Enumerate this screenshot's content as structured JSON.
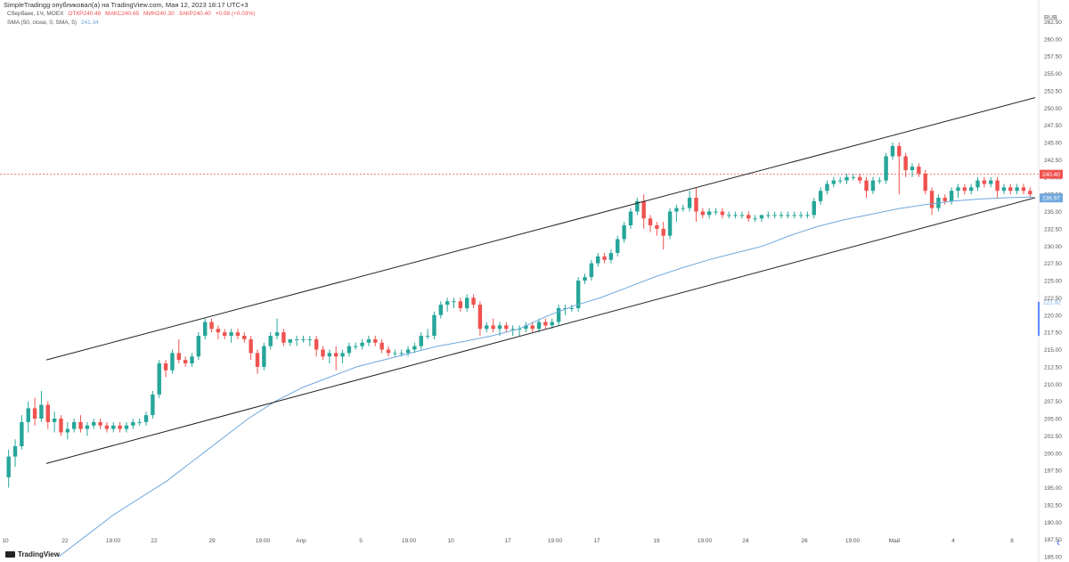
{
  "caption": "SimpleTradingg опубликовал(а) на TradingView.com, Мая 12, 2023 18:17 UTC+3",
  "legend": {
    "symbol": "Сбербанк, 1Ч, MOEX",
    "open": "ОТКР240.48",
    "high": "МАКС240.65",
    "low": "МИН240.30",
    "close": "ЗАКР240.40",
    "change": "+0.08 (+0.03%)",
    "sma_label": "SMA (50, close, 0, SMA, 5)",
    "sma_value": "241.34"
  },
  "footer": {
    "brand": "TradingView"
  },
  "chart_data": {
    "type": "candlestick",
    "currency": "RUB",
    "ylim": [
      185,
      265
    ],
    "y_ticks": [
      185,
      187.5,
      190,
      192.5,
      195,
      197.5,
      200,
      202.5,
      205,
      207.5,
      210,
      212.5,
      215,
      217.5,
      220,
      222.5,
      225,
      227.5,
      230,
      232.5,
      235,
      237.5,
      240,
      242.5,
      245,
      247.5,
      250,
      252.5,
      255,
      257.5,
      260,
      262.5
    ],
    "y_tick_labels": [
      "185.00",
      "187.50",
      "190.00",
      "192.50",
      "195.00",
      "197.50",
      "200.00",
      "202.50",
      "205.00",
      "207.50",
      "210.00",
      "212.50",
      "215.00",
      "217.50",
      "220.00",
      "222.50",
      "225.00",
      "227.50",
      "230.00",
      "232.50",
      "235.00",
      "237.50",
      "240.00",
      "242.50",
      "245.00",
      "247.50",
      "250.00",
      "252.50",
      "255.00",
      "257.50",
      "260.00",
      "262.50"
    ],
    "x_ticks": [
      "10",
      "22",
      "19:00",
      "22",
      "29",
      "19:00",
      "Апр",
      "5",
      "19:00",
      "10",
      "17",
      "19:00",
      "17",
      "19",
      "19:00",
      "24",
      "26",
      "19:00",
      "Май",
      "4",
      "8"
    ],
    "last_price_label": "240.40",
    "sma_price_label": "236.97",
    "side_price_label": "221.92",
    "colors": {
      "up": "#26a69a",
      "down": "#ef5350",
      "sma": "#6fa8dc",
      "channel": "#222222",
      "last_price": "#ef5350",
      "sma_badge": "#6fa8dc"
    },
    "candles": [
      [
        196.5,
        200.5,
        195,
        199.5
      ],
      [
        199.5,
        202,
        198,
        201
      ],
      [
        201,
        205.5,
        200.5,
        204.5
      ],
      [
        204.5,
        207.5,
        203,
        206.5
      ],
      [
        206.5,
        208,
        204,
        205
      ],
      [
        205,
        209,
        204.5,
        207
      ],
      [
        207,
        207.5,
        203.5,
        204.5
      ],
      [
        204.5,
        206,
        203,
        205
      ],
      [
        205,
        205.5,
        202.5,
        203
      ],
      [
        203,
        204.5,
        202,
        203.5
      ],
      [
        203.5,
        205,
        203,
        204.5
      ],
      [
        204.5,
        205.5,
        203,
        203.5
      ],
      [
        203.5,
        204.5,
        202.5,
        204
      ],
      [
        204,
        205,
        203.5,
        204.5
      ],
      [
        204.5,
        205,
        203.5,
        204
      ],
      [
        204,
        204.5,
        203,
        203.5
      ],
      [
        203.5,
        204.5,
        203,
        204
      ],
      [
        204,
        204.5,
        203,
        203.5
      ],
      [
        203.5,
        204.5,
        203,
        204
      ],
      [
        204,
        205,
        203.5,
        204.5
      ],
      [
        204.5,
        205,
        204,
        204.5
      ],
      [
        204.5,
        206,
        204,
        205.5
      ],
      [
        205.5,
        209,
        205,
        208.5
      ],
      [
        208.5,
        213.5,
        208,
        213
      ],
      [
        213,
        213.5,
        211,
        212
      ],
      [
        212,
        215,
        211.5,
        214.5
      ],
      [
        214.5,
        216.5,
        213,
        213.5
      ],
      [
        213.5,
        214,
        212.5,
        213
      ],
      [
        213,
        214.5,
        212.5,
        214
      ],
      [
        214,
        217.5,
        213.5,
        217
      ],
      [
        217,
        219.5,
        216.5,
        219
      ],
      [
        219,
        219.5,
        217.5,
        218
      ],
      [
        218,
        218.5,
        216.5,
        217.5
      ],
      [
        217.5,
        218,
        216.5,
        217
      ],
      [
        217,
        218,
        216,
        217.5
      ],
      [
        217.5,
        218,
        216.5,
        217
      ],
      [
        217,
        217.5,
        216,
        216.5
      ],
      [
        216.5,
        217,
        213.5,
        214.5
      ],
      [
        214.5,
        215,
        211.5,
        212.5
      ],
      [
        212.5,
        216,
        212,
        215.5
      ],
      [
        215.5,
        217.5,
        215,
        217
      ],
      [
        217,
        219.5,
        216.5,
        217.5
      ],
      [
        217.5,
        218,
        215.5,
        216
      ],
      [
        216,
        216.5,
        215.5,
        216.5
      ],
      [
        216.5,
        217,
        215.5,
        216.5
      ],
      [
        216.5,
        217,
        216,
        216.5
      ],
      [
        216.5,
        217,
        215.5,
        216.5
      ],
      [
        216.5,
        217,
        214,
        215
      ],
      [
        215,
        215.5,
        213.5,
        214
      ],
      [
        214,
        215,
        213,
        214.5
      ],
      [
        214.5,
        215.5,
        212,
        214
      ],
      [
        214,
        215,
        213,
        214.5
      ],
      [
        214.5,
        216,
        214,
        215.5
      ],
      [
        215.5,
        216,
        215,
        215.5
      ],
      [
        215.5,
        216.5,
        215,
        216
      ],
      [
        216,
        217,
        215.5,
        216.5
      ],
      [
        216.5,
        217,
        215.5,
        216
      ],
      [
        216,
        216.5,
        214.5,
        215
      ],
      [
        215,
        215.5,
        214,
        214.5
      ],
      [
        214.5,
        215,
        214,
        214.5
      ],
      [
        214.5,
        215,
        214,
        214.5
      ],
      [
        214.5,
        215.5,
        214,
        215
      ],
      [
        215,
        216,
        214.5,
        215.5
      ],
      [
        215.5,
        217.5,
        215,
        217
      ],
      [
        217,
        218,
        216.5,
        217
      ],
      [
        217,
        220.5,
        216.5,
        220
      ],
      [
        220,
        222,
        219.5,
        221.5
      ],
      [
        221.5,
        222.5,
        220.5,
        222
      ],
      [
        222,
        222.5,
        221,
        222
      ],
      [
        222,
        222.5,
        220.5,
        221
      ],
      [
        221,
        223,
        220.5,
        222.5
      ],
      [
        222.5,
        223,
        221,
        221.5
      ],
      [
        221.5,
        222,
        217,
        218
      ],
      [
        218,
        219,
        217.5,
        218.5
      ],
      [
        218.5,
        219.5,
        217.5,
        218
      ],
      [
        218,
        219,
        217,
        218.5
      ],
      [
        218.5,
        219,
        217.5,
        218
      ],
      [
        218,
        218.5,
        217,
        218
      ],
      [
        218,
        218.5,
        217,
        218
      ],
      [
        218,
        219,
        217.5,
        218.5
      ],
      [
        218.5,
        219,
        217.5,
        218
      ],
      [
        218,
        219.5,
        217.5,
        219
      ],
      [
        219,
        219.5,
        218,
        218.5
      ],
      [
        218.5,
        219.5,
        218,
        219
      ],
      [
        219,
        221.5,
        218.5,
        221
      ],
      [
        221,
        221.5,
        220,
        221
      ],
      [
        221,
        221.5,
        220.5,
        221
      ],
      [
        221,
        225.5,
        220.5,
        225
      ],
      [
        225,
        226,
        224.5,
        225.5
      ],
      [
        225.5,
        228,
        225,
        227.5
      ],
      [
        227.5,
        229,
        227,
        228.5
      ],
      [
        228.5,
        229,
        227.5,
        228
      ],
      [
        228,
        229.5,
        227.5,
        229
      ],
      [
        229,
        231.5,
        228.5,
        231
      ],
      [
        231,
        233.5,
        230.5,
        233
      ],
      [
        233,
        235.5,
        232.5,
        235
      ],
      [
        235,
        237,
        234.5,
        236.5
      ],
      [
        236.5,
        237.5,
        232.5,
        234
      ],
      [
        234,
        234.5,
        232,
        233
      ],
      [
        233,
        233.5,
        231.5,
        232.5
      ],
      [
        232.5,
        233.5,
        229.5,
        231.5
      ],
      [
        231.5,
        235.5,
        231,
        235
      ],
      [
        235,
        236,
        233.5,
        235.5
      ],
      [
        235.5,
        236,
        235,
        235.5
      ],
      [
        235.5,
        238,
        235,
        237
      ],
      [
        237,
        238.5,
        233.5,
        235
      ],
      [
        235,
        235.5,
        234,
        234.5
      ],
      [
        234.5,
        235.5,
        234,
        235
      ],
      [
        235,
        235.5,
        234.5,
        235
      ],
      [
        235,
        235.5,
        234,
        234.5
      ],
      [
        234.5,
        235,
        234,
        234.5
      ],
      [
        234.5,
        235,
        234,
        234.5
      ],
      [
        234.5,
        235,
        234,
        234.5
      ],
      [
        234.5,
        235,
        233.5,
        234
      ],
      [
        234,
        234.5,
        233.5,
        234
      ],
      [
        234,
        234.5,
        233.5,
        234.5
      ],
      [
        234.5,
        235,
        234,
        234.5
      ],
      [
        234.5,
        235,
        234,
        234.5
      ],
      [
        234.5,
        235,
        234,
        234.5
      ],
      [
        234.5,
        235,
        234,
        234.5
      ],
      [
        234.5,
        235,
        234,
        234.5
      ],
      [
        234.5,
        235,
        234,
        234.5
      ],
      [
        234.5,
        235,
        234,
        234.5
      ],
      [
        234.5,
        237,
        234,
        236.5
      ],
      [
        236.5,
        238.5,
        236,
        238
      ],
      [
        238,
        239.5,
        237.5,
        239
      ],
      [
        239,
        240,
        238.5,
        239.5
      ],
      [
        239.5,
        240,
        239,
        239.5
      ],
      [
        239.5,
        240.5,
        239,
        240
      ],
      [
        240,
        240.5,
        239.5,
        240
      ],
      [
        240,
        240.5,
        239,
        239.5
      ],
      [
        239.5,
        240,
        237,
        238
      ],
      [
        238,
        240,
        237.5,
        239.5
      ],
      [
        239.5,
        240,
        239,
        239.5
      ],
      [
        239.5,
        243.5,
        239,
        243
      ],
      [
        243,
        245,
        242.5,
        244.5
      ],
      [
        244.5,
        245,
        237.5,
        243
      ],
      [
        243,
        243.5,
        240,
        241
      ],
      [
        241,
        242,
        240,
        241.5
      ],
      [
        241.5,
        242,
        240,
        240.5
      ],
      [
        240.5,
        241,
        237.5,
        238
      ],
      [
        238,
        238.5,
        234.5,
        235.5
      ],
      [
        235.5,
        237.5,
        235,
        237
      ],
      [
        237,
        237.5,
        236,
        236.5
      ],
      [
        236.5,
        238.5,
        236,
        238
      ],
      [
        238,
        239,
        237,
        238.5
      ],
      [
        238.5,
        239,
        237.5,
        238
      ],
      [
        238,
        239,
        237.5,
        238.5
      ],
      [
        238.5,
        240,
        238,
        239.5
      ],
      [
        239.5,
        240,
        238.5,
        239
      ],
      [
        239,
        240,
        238.5,
        239.5
      ],
      [
        239.5,
        240,
        237,
        238
      ],
      [
        238,
        239,
        237.5,
        238.5
      ],
      [
        238.5,
        239,
        237.5,
        238
      ],
      [
        238,
        239,
        237.5,
        238.5
      ],
      [
        238.5,
        239,
        237.5,
        238
      ],
      [
        238,
        238.5,
        237,
        237.5
      ]
    ],
    "sma": [
      [
        0,
        185
      ],
      [
        20,
        188
      ],
      [
        40,
        191
      ],
      [
        60,
        193.5
      ],
      [
        80,
        196
      ],
      [
        100,
        199
      ],
      [
        120,
        202
      ],
      [
        140,
        205
      ],
      [
        160,
        207.5
      ],
      [
        180,
        209.5
      ],
      [
        200,
        211
      ],
      [
        220,
        212.5
      ],
      [
        240,
        213.5
      ],
      [
        260,
        214.5
      ],
      [
        280,
        215.5
      ],
      [
        300,
        216.2
      ],
      [
        320,
        217
      ],
      [
        340,
        218
      ],
      [
        360,
        219.8
      ],
      [
        380,
        221.3
      ],
      [
        400,
        222.5
      ],
      [
        420,
        224
      ],
      [
        440,
        225.5
      ],
      [
        460,
        226.8
      ],
      [
        480,
        228
      ],
      [
        500,
        229
      ],
      [
        520,
        230
      ],
      [
        540,
        231.5
      ],
      [
        560,
        232.8
      ],
      [
        580,
        233.8
      ],
      [
        600,
        234.6
      ],
      [
        620,
        235.4
      ],
      [
        640,
        236
      ],
      [
        660,
        236.5
      ],
      [
        680,
        236.8
      ],
      [
        700,
        237
      ],
      [
        720,
        237.1
      ]
    ],
    "channel_upper": [
      [
        15,
        213.5
      ],
      [
        1125,
        251.5
      ]
    ],
    "channel_lower": [
      [
        15,
        198.5
      ],
      [
        1125,
        237
      ]
    ]
  }
}
